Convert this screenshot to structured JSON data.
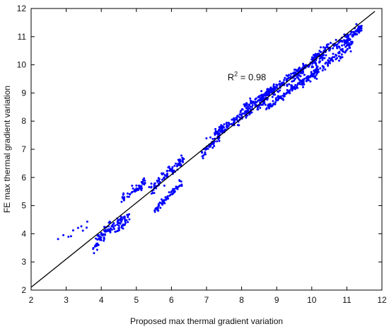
{
  "chart_data": {
    "type": "scatter",
    "xlabel": "Proposed max thermal gradient variation",
    "ylabel": "FE max thermal gradient variation",
    "xlim": [
      2,
      12
    ],
    "ylim": [
      2,
      12
    ],
    "xticks": [
      2,
      3,
      4,
      5,
      6,
      7,
      8,
      9,
      10,
      11,
      12
    ],
    "yticks": [
      2,
      3,
      4,
      5,
      6,
      7,
      8,
      9,
      10,
      11,
      12
    ],
    "grid": false,
    "annotation": {
      "base": "R",
      "superscript": "2",
      "text": " = 0.98",
      "x": 7.6,
      "y": 9.45
    },
    "reference_line": {
      "name": "y = x",
      "x": [
        2,
        11.8
      ],
      "y": [
        2.1,
        11.9
      ],
      "color": "#000000"
    },
    "series": [
      {
        "marker_color": "#0000ff",
        "clusters": [
          {
            "x0": 2.65,
            "x1": 3.75,
            "y0": 3.76,
            "y1": 4.45,
            "n": 10,
            "spread": 0.1
          },
          {
            "x0": 3.75,
            "x1": 4.25,
            "y0": 3.45,
            "y1": 4.3,
            "n": 52,
            "spread": 0.14
          },
          {
            "x0": 4.05,
            "x1": 4.65,
            "y0": 4.0,
            "y1": 4.55,
            "n": 38,
            "spread": 0.08
          },
          {
            "x0": 4.4,
            "x1": 4.8,
            "y0": 4.05,
            "y1": 4.6,
            "n": 28,
            "spread": 0.09
          },
          {
            "x0": 4.6,
            "x1": 5.2,
            "y0": 5.28,
            "y1": 5.7,
            "n": 30,
            "spread": 0.06
          },
          {
            "x0": 4.95,
            "x1": 5.25,
            "y0": 5.55,
            "y1": 5.88,
            "n": 16,
            "spread": 0.06
          },
          {
            "x0": 5.4,
            "x1": 6.35,
            "y0": 5.55,
            "y1": 6.65,
            "n": 90,
            "spread": 0.09
          },
          {
            "x0": 5.5,
            "x1": 6.3,
            "y0": 4.8,
            "y1": 5.82,
            "n": 60,
            "spread": 0.07
          },
          {
            "x0": 6.85,
            "x1": 7.35,
            "y0": 6.8,
            "y1": 7.45,
            "n": 42,
            "spread": 0.08
          },
          {
            "x0": 7.0,
            "x1": 7.55,
            "y0": 7.35,
            "y1": 7.7,
            "n": 22,
            "spread": 0.07
          },
          {
            "x0": 7.3,
            "x1": 8.7,
            "y0": 7.6,
            "y1": 8.8,
            "n": 150,
            "spread": 0.1
          },
          {
            "x0": 8.05,
            "x1": 8.9,
            "y0": 8.5,
            "y1": 9.1,
            "n": 60,
            "spread": 0.07
          },
          {
            "x0": 8.5,
            "x1": 9.75,
            "y0": 8.8,
            "y1": 9.75,
            "n": 120,
            "spread": 0.09
          },
          {
            "x0": 8.7,
            "x1": 10.2,
            "y0": 8.45,
            "y1": 9.85,
            "n": 110,
            "spread": 0.06
          },
          {
            "x0": 9.3,
            "x1": 10.4,
            "y0": 9.5,
            "y1": 10.4,
            "n": 90,
            "spread": 0.07
          },
          {
            "x0": 9.7,
            "x1": 11.15,
            "y0": 9.3,
            "y1": 10.75,
            "n": 110,
            "spread": 0.09
          },
          {
            "x0": 10.0,
            "x1": 11.4,
            "y0": 10.2,
            "y1": 11.3,
            "n": 110,
            "spread": 0.08
          },
          {
            "x0": 10.8,
            "x1": 11.45,
            "y0": 10.6,
            "y1": 11.35,
            "n": 40,
            "spread": 0.07
          }
        ]
      }
    ]
  }
}
